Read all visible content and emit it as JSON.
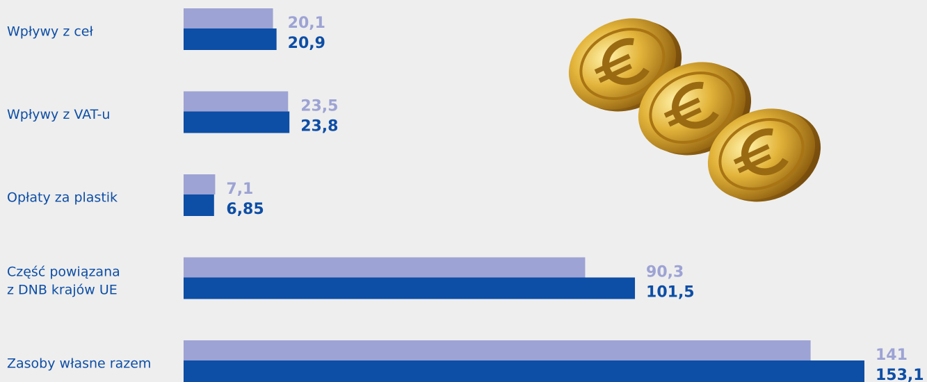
{
  "chart_data": {
    "type": "hbar",
    "categories": [
      "Wpływy z ceł",
      "Wpływy z VAT-u",
      "Opłaty za plastik",
      "Część powiązana\nz DNB krajów UE",
      "Zasoby własne razem"
    ],
    "series": [
      {
        "color": "#9da3d4",
        "values": [
          20.1,
          23.5,
          7.1,
          90.3,
          141
        ],
        "value_labels": [
          "20,1",
          "23,5",
          "7,1",
          "90,3",
          "141"
        ]
      },
      {
        "color": "#0d4ea6",
        "values": [
          20.9,
          23.8,
          6.85,
          101.5,
          153.1
        ],
        "value_labels": [
          "20,9",
          "23,8",
          "6,85",
          "101,5",
          "153,1"
        ]
      }
    ],
    "xlim": [
      0,
      153.1
    ]
  }
}
